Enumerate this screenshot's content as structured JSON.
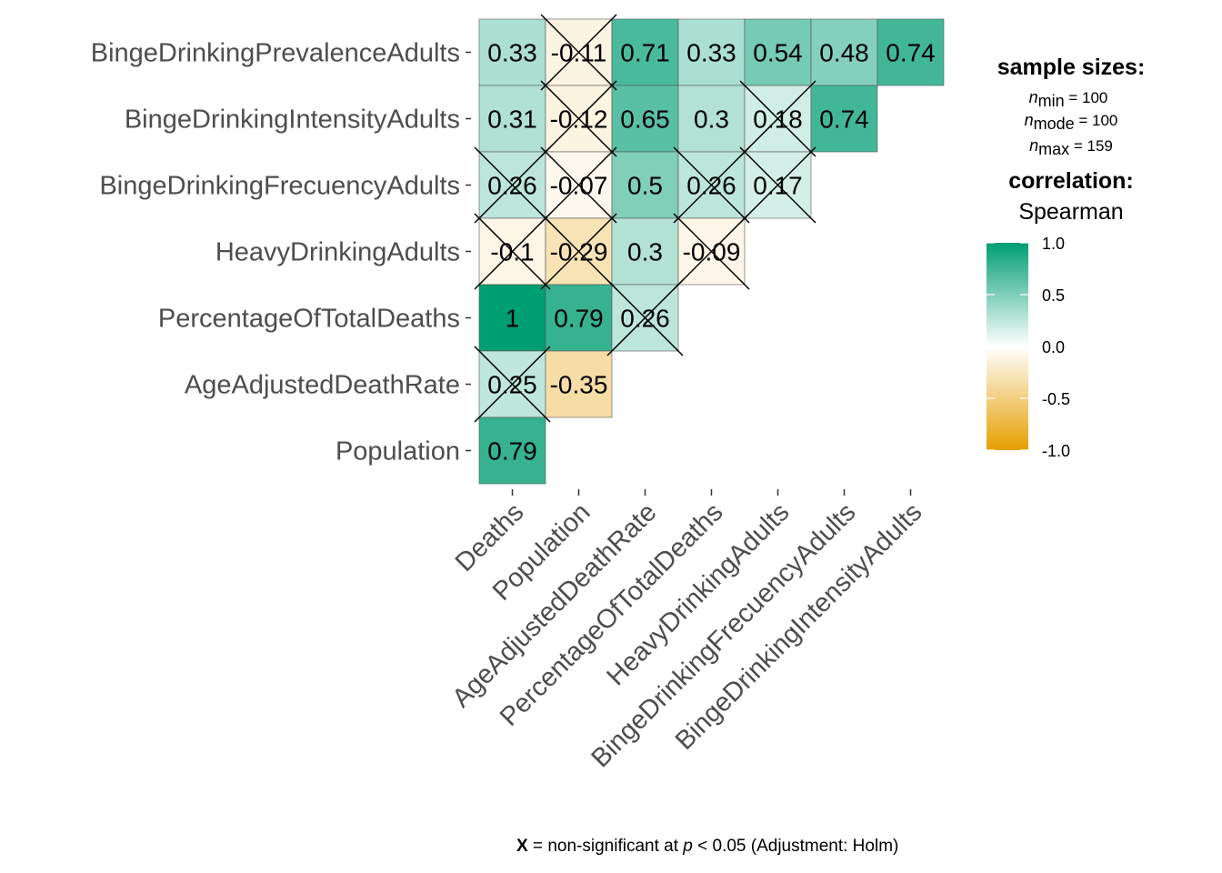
{
  "chart_data": {
    "type": "heatmap",
    "rows": [
      "BingeDrinkingPrevalenceAdults",
      "BingeDrinkingIntensityAdults",
      "BingeDrinkingFrecuencyAdults",
      "HeavyDrinkingAdults",
      "PercentageOfTotalDeaths",
      "AgeAdjustedDeathRate",
      "Population"
    ],
    "columns": [
      "Deaths",
      "Population",
      "AgeAdjustedDeathRate",
      "PercentageOfTotalDeaths",
      "HeavyDrinkingAdults",
      "BingeDrinkingFrecuencyAdults",
      "BingeDrinkingIntensityAdults"
    ],
    "values": [
      [
        0.33,
        -0.11,
        0.71,
        0.33,
        0.54,
        0.48,
        0.74
      ],
      [
        0.31,
        -0.12,
        0.65,
        0.3,
        0.18,
        0.74,
        null
      ],
      [
        0.26,
        -0.07,
        0.5,
        0.26,
        0.17,
        null,
        null
      ],
      [
        -0.1,
        -0.29,
        0.3,
        -0.09,
        null,
        null,
        null
      ],
      [
        1,
        0.79,
        0.26,
        null,
        null,
        null,
        null
      ],
      [
        0.25,
        -0.35,
        null,
        null,
        null,
        null,
        null
      ],
      [
        0.79,
        null,
        null,
        null,
        null,
        null,
        null
      ]
    ],
    "labels": [
      [
        "0.33",
        "-0.11",
        "0.71",
        "0.33",
        "0.54",
        "0.48",
        "0.74"
      ],
      [
        "0.31",
        "-0.12",
        "0.65",
        "0.3",
        "0.18",
        "0.74",
        ""
      ],
      [
        "0.26",
        "-0.07",
        "0.5",
        "0.26",
        "0.17",
        "",
        ""
      ],
      [
        "-0.1",
        "-0.29",
        "0.3",
        "-0.09",
        "",
        "",
        ""
      ],
      [
        "1",
        "0.79",
        "0.26",
        "",
        "",
        "",
        ""
      ],
      [
        "0.25",
        "-0.35",
        "",
        "",
        "",
        "",
        ""
      ],
      [
        "0.79",
        "",
        "",
        "",
        "",
        "",
        ""
      ]
    ],
    "non_significant": [
      [
        false,
        true,
        false,
        false,
        false,
        false,
        false
      ],
      [
        false,
        true,
        false,
        false,
        true,
        false,
        false
      ],
      [
        true,
        true,
        false,
        true,
        true,
        false,
        false
      ],
      [
        true,
        true,
        false,
        true,
        false,
        false,
        false
      ],
      [
        false,
        false,
        true,
        false,
        false,
        false,
        false
      ],
      [
        true,
        false,
        false,
        false,
        false,
        false,
        false
      ],
      [
        false,
        false,
        false,
        false,
        false,
        false,
        false
      ]
    ],
    "legend": {
      "sample_title": "sample sizes:",
      "n_min": "= 100",
      "n_mode": "= 100",
      "n_max": "= 159",
      "corr_title": "correlation:",
      "corr_method": "Spearman",
      "ticks": [
        "1.0",
        "0.5",
        "0.0",
        "-0.5",
        "-1.0"
      ],
      "range": [
        -1,
        1
      ]
    },
    "caption": {
      "x": "X",
      "text_a": " = non-significant at ",
      "p": "p",
      "text_b": " < 0.05 (Adjustment: Holm)"
    },
    "colors": {
      "low": "#E69F00",
      "mid": "#FFFFFF",
      "high": "#009E73"
    }
  }
}
